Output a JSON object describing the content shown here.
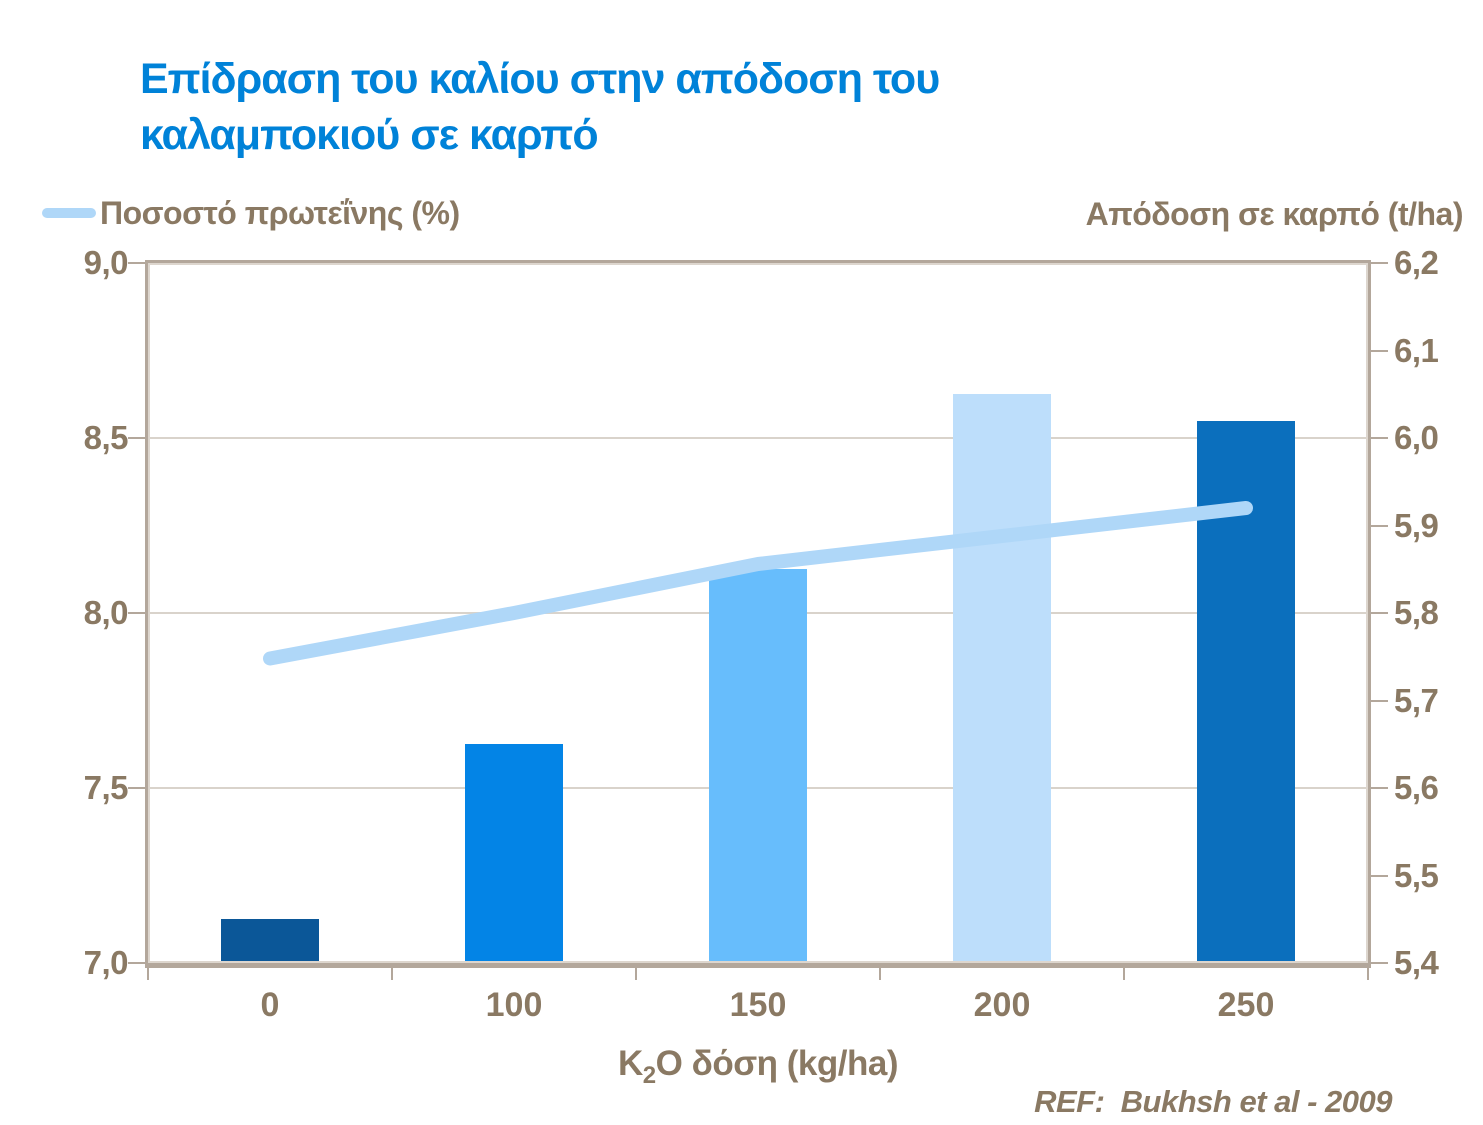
{
  "title_lines": {
    "0": "Επίδραση του καλίου στην απόδοση του",
    "1": "καλαμποκιού σε καρπό"
  },
  "legend": {
    "protein_label": "Ποσοστό πρωτεΐνης (%)"
  },
  "right_axis_title": "Απόδοση σε καρπό (t/ha)",
  "x_axis_title": {
    "pre": "K",
    "sub": "2",
    "post": "O δόση (kg/ha)"
  },
  "ref_text": "REF:  Bukhsh et al - 2009",
  "colors": {
    "title_blue": "#0082D8",
    "axis_text_taupe": "#8A7963",
    "frame": "#B3A79B",
    "gridline": "#D9D3CB",
    "line_light_blue": "#AFD7F8"
  },
  "chart_data": {
    "type": "bar",
    "categories": [
      "0",
      "100",
      "150",
      "200",
      "250"
    ],
    "xlabel": "K2O δόση (kg/ha)",
    "series": [
      {
        "name": "Απόδοση σε καρπό (t/ha)",
        "type": "bar",
        "axis": "right",
        "values": [
          5.45,
          5.65,
          5.85,
          6.05,
          6.02
        ],
        "bar_colors": [
          "#0B5798",
          "#0384E6",
          "#67BDFC",
          "#BDDEFB",
          "#0B6FBD"
        ]
      },
      {
        "name": "Ποσοστό πρωτεΐνης (%)",
        "type": "line",
        "axis": "left",
        "values": [
          7.87,
          8.0,
          8.14,
          8.22,
          8.3
        ],
        "color": "#AFD7F8",
        "stroke_width": 14
      }
    ],
    "left_axis": {
      "label": "Ποσοστό πρωτεΐνης (%)",
      "min": 7.0,
      "max": 9.0,
      "step": 0.5,
      "ticks": [
        "9,0",
        "8,5",
        "8,0",
        "7,5",
        "7,0"
      ]
    },
    "right_axis": {
      "label": "Απόδοση σε καρπό (t/ha)",
      "min": 5.4,
      "max": 6.2,
      "step": 0.1,
      "ticks": [
        "6,2",
        "6,1",
        "6,0",
        "5,9",
        "5,8",
        "5,7",
        "5,6",
        "5,5",
        "5,4"
      ]
    },
    "gridlines_left_values": [
      8.5,
      8.0,
      7.5
    ],
    "legend_position": "top-left",
    "grid": true
  }
}
